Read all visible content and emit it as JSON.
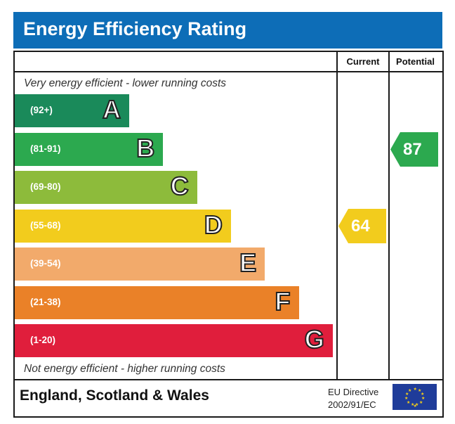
{
  "header": {
    "title": "Energy Efficiency Rating"
  },
  "columns": {
    "current_label": "Current",
    "potential_label": "Potential"
  },
  "notes": {
    "top": "Very energy efficient - lower running costs",
    "bottom": "Not energy efficient - higher running costs"
  },
  "chart_data": {
    "type": "bar",
    "title": "Energy Efficiency Rating",
    "categories": [
      "A",
      "B",
      "C",
      "D",
      "E",
      "F",
      "G"
    ],
    "ranges": [
      "(92+)",
      "(81-91)",
      "(69-80)",
      "(55-68)",
      "(39-54)",
      "(21-38)",
      "(1-20)"
    ],
    "colors": [
      "#1a8a5a",
      "#2ca94f",
      "#8dbb3b",
      "#f2cc1d",
      "#f2aa6b",
      "#ea8128",
      "#e01e3c"
    ],
    "current": {
      "value": 64,
      "band": "D",
      "color": "#f2cc1d"
    },
    "potential": {
      "value": 87,
      "band": "B",
      "color": "#2ca94f"
    }
  },
  "footer": {
    "region": "England, Scotland & Wales",
    "directive_line1": "EU Directive",
    "directive_line2": "2002/91/EC"
  }
}
